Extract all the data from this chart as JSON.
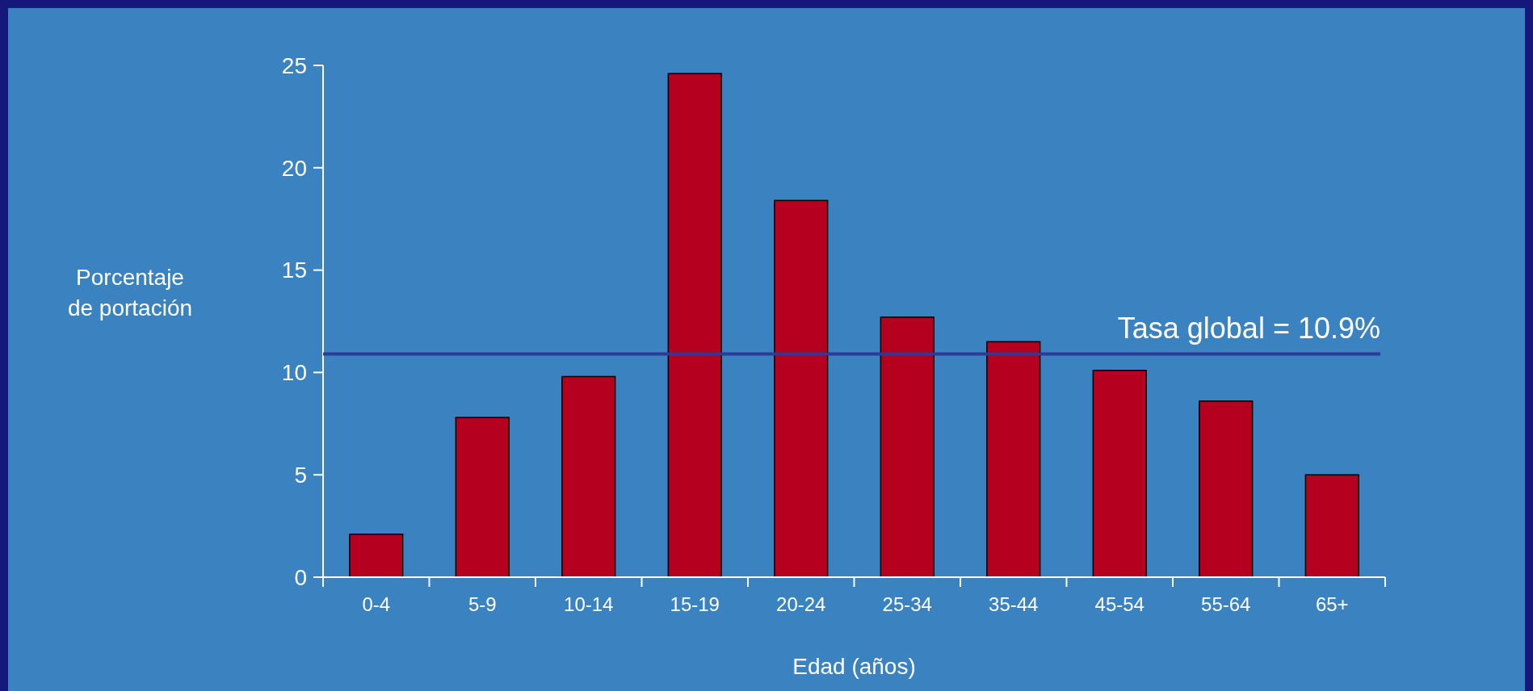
{
  "chart_data": {
    "type": "bar",
    "xlabel": "Edad (años)",
    "ylabel": "Porcentaje\nde portación",
    "categories": [
      "0-4",
      "5-9",
      "10-14",
      "15-19",
      "20-24",
      "25-34",
      "35-44",
      "45-54",
      "55-64",
      "65+"
    ],
    "values": [
      2.1,
      7.8,
      9.8,
      24.6,
      18.4,
      12.7,
      11.5,
      10.1,
      8.6,
      5.0
    ],
    "color": "#b5001f",
    "ylim": [
      0,
      25
    ],
    "yticks": [
      0,
      5,
      10,
      15,
      20,
      25
    ],
    "ref_lines": [
      {
        "axis": "y",
        "value": 10.9,
        "label": "Tasa global = 10.9%",
        "color": "#2e3a96"
      }
    ]
  }
}
